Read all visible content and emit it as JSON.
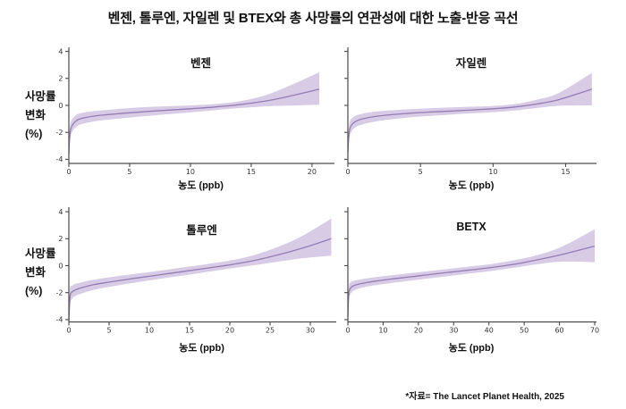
{
  "title": "벤젠, 톨루엔, 자일렌 및 BTEX와 총 사망률의 연관성에 대한 노출-반응 곡선",
  "footer": "*자료= The Lancet Planet Health, 2025",
  "labels": {
    "xlabel": "농도 (ppb)",
    "ylabel_line1": "사망률",
    "ylabel_line2": "변화",
    "ylabel_line3": "(%)"
  },
  "colors": {
    "band": "#d5c8e4",
    "line": "#947cb4",
    "axis": "#4a4a4a",
    "text": "#111111"
  },
  "chart_data": [
    {
      "type": "area",
      "title": "벤젠",
      "xlabel": "농도 (ppb)",
      "ylabel": "사망률 변화 (%)",
      "xlim": [
        0,
        21.7
      ],
      "ylim": [
        -4,
        4
      ],
      "xticks": [
        0,
        5,
        10,
        15,
        20
      ],
      "yticks": [
        4,
        2,
        0,
        -2,
        -4
      ],
      "show_ytick_labels": true,
      "x": [
        0,
        0.1,
        0.3,
        0.6,
        1,
        2,
        3,
        5,
        7,
        10,
        12,
        14,
        16,
        18,
        20.6
      ],
      "center": [
        -3.6,
        -2.0,
        -1.45,
        -1.15,
        -0.98,
        -0.8,
        -0.7,
        -0.55,
        -0.42,
        -0.25,
        -0.12,
        0.05,
        0.3,
        0.65,
        1.2
      ],
      "lower": [
        -3.85,
        -2.55,
        -1.9,
        -1.6,
        -1.4,
        -1.2,
        -1.08,
        -0.9,
        -0.74,
        -0.52,
        -0.36,
        -0.2,
        -0.08,
        -0.02,
        0.05
      ],
      "upper": [
        -3.35,
        -1.5,
        -1.0,
        -0.72,
        -0.57,
        -0.43,
        -0.35,
        -0.2,
        -0.1,
        0.0,
        0.1,
        0.3,
        0.7,
        1.4,
        2.45
      ]
    },
    {
      "type": "area",
      "title": "자일렌",
      "xlabel": "농도 (ppb)",
      "ylabel": "사망률 변화 (%)",
      "xlim": [
        0,
        17
      ],
      "ylim": [
        -4,
        4
      ],
      "xticks": [
        0,
        5,
        10,
        15
      ],
      "yticks": [
        4,
        2,
        0,
        -2,
        -4
      ],
      "show_ytick_labels": false,
      "x": [
        0,
        0.1,
        0.3,
        0.6,
        1,
        2,
        4,
        6,
        8,
        10,
        11.5,
        13,
        14.5,
        16.8
      ],
      "center": [
        -3.5,
        -1.9,
        -1.4,
        -1.15,
        -1.0,
        -0.8,
        -0.6,
        -0.48,
        -0.37,
        -0.25,
        -0.12,
        0.1,
        0.42,
        1.2
      ],
      "lower": [
        -3.75,
        -2.45,
        -1.85,
        -1.58,
        -1.42,
        -1.18,
        -0.92,
        -0.76,
        -0.62,
        -0.5,
        -0.38,
        -0.2,
        -0.03,
        0.0
      ],
      "upper": [
        -3.25,
        -1.4,
        -0.95,
        -0.75,
        -0.62,
        -0.45,
        -0.3,
        -0.2,
        -0.12,
        -0.04,
        0.1,
        0.42,
        0.9,
        2.4
      ]
    },
    {
      "type": "area",
      "title": "톨루엔",
      "xlabel": "농도 (ppb)",
      "ylabel": "사망률 변화 (%)",
      "xlim": [
        0,
        33
      ],
      "ylim": [
        -4,
        4
      ],
      "xticks": [
        0,
        5,
        10,
        15,
        20,
        25,
        30
      ],
      "yticks": [
        4,
        2,
        0,
        -2,
        -4
      ],
      "show_ytick_labels": true,
      "x": [
        0,
        0.15,
        0.4,
        0.8,
        1.5,
        3,
        5,
        8,
        11,
        14,
        17,
        20,
        23,
        26,
        29,
        32.6
      ],
      "center": [
        -4.1,
        -2.3,
        -1.95,
        -1.8,
        -1.65,
        -1.42,
        -1.22,
        -0.95,
        -0.7,
        -0.45,
        -0.2,
        0.06,
        0.38,
        0.8,
        1.3,
        2.0
      ],
      "lower": [
        -4.3,
        -2.85,
        -2.45,
        -2.25,
        -2.08,
        -1.8,
        -1.57,
        -1.28,
        -1.0,
        -0.75,
        -0.48,
        -0.22,
        0.03,
        0.3,
        0.55,
        0.75
      ],
      "upper": [
        -3.9,
        -1.75,
        -1.5,
        -1.35,
        -1.25,
        -1.05,
        -0.87,
        -0.62,
        -0.4,
        -0.14,
        0.1,
        0.38,
        0.78,
        1.4,
        2.2,
        3.5
      ]
    },
    {
      "type": "area",
      "title": "BETX",
      "xlabel": "농도 (ppb)",
      "ylabel": "사망률 변화 (%)",
      "xlim": [
        0,
        70
      ],
      "ylim": [
        -4,
        4
      ],
      "xticks": [
        0,
        10,
        20,
        30,
        40,
        50,
        60,
        70
      ],
      "yticks": [
        4,
        2,
        0,
        -2,
        -4
      ],
      "show_ytick_labels": false,
      "x": [
        0,
        0.3,
        1,
        2,
        4,
        7,
        12,
        18,
        25,
        32,
        40,
        47,
        54,
        61,
        70
      ],
      "center": [
        -3.8,
        -2.0,
        -1.6,
        -1.45,
        -1.32,
        -1.18,
        -1.0,
        -0.82,
        -0.6,
        -0.4,
        -0.16,
        0.1,
        0.45,
        0.85,
        1.45
      ],
      "lower": [
        -4.0,
        -2.5,
        -2.0,
        -1.8,
        -1.64,
        -1.48,
        -1.3,
        -1.1,
        -0.88,
        -0.66,
        -0.42,
        -0.16,
        0.12,
        0.3,
        0.25
      ],
      "upper": [
        -3.6,
        -1.55,
        -1.22,
        -1.1,
        -1.0,
        -0.88,
        -0.72,
        -0.55,
        -0.34,
        -0.13,
        0.1,
        0.4,
        0.8,
        1.45,
        2.7
      ]
    }
  ]
}
